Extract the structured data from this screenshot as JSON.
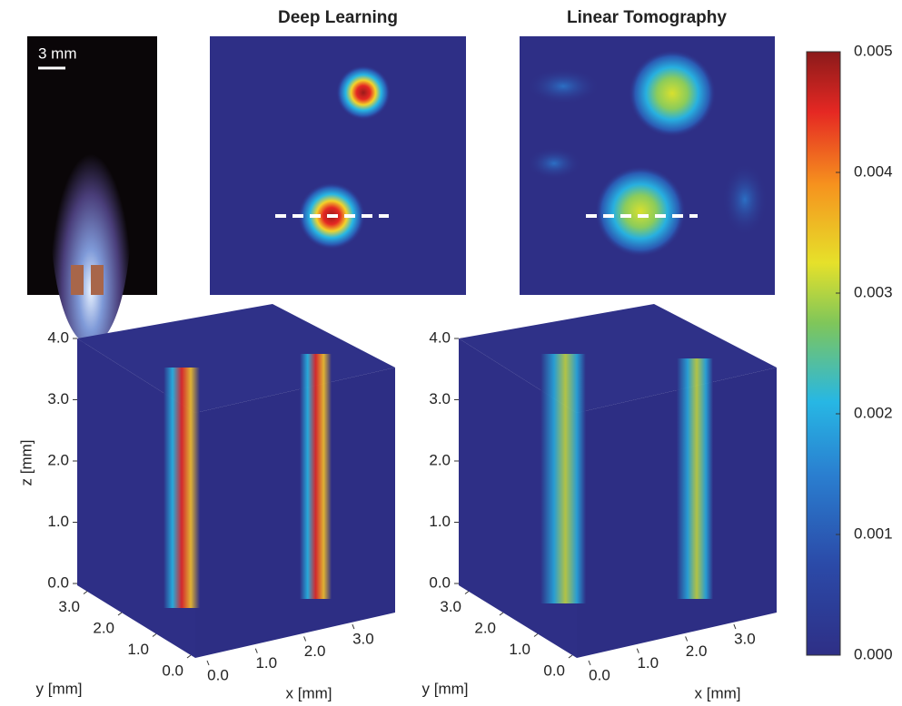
{
  "photo": {
    "scale_label": "3 mm"
  },
  "panels": [
    {
      "title": "Deep Learning"
    },
    {
      "title": "Linear Tomography"
    }
  ],
  "volumes": {
    "z_label": "z [mm]",
    "x_label": "x [mm]",
    "y_label": "y [mm]",
    "zlim": [
      0,
      4
    ],
    "zticks": [
      {
        "value": 0,
        "label": "0.0"
      },
      {
        "value": 1,
        "label": "1.0"
      },
      {
        "value": 2,
        "label": "2.0"
      },
      {
        "value": 3,
        "label": "3.0"
      },
      {
        "value": 4,
        "label": "4.0"
      }
    ],
    "xticks": [
      {
        "value": 0,
        "label": "0.0"
      },
      {
        "value": 1,
        "label": "1.0"
      },
      {
        "value": 2,
        "label": "2.0"
      },
      {
        "value": 3,
        "label": "3.0"
      }
    ],
    "yticks": [
      {
        "value": 0,
        "label": "0.0"
      },
      {
        "value": 1,
        "label": "1.0"
      },
      {
        "value": 2,
        "label": "2.0"
      },
      {
        "value": 3,
        "label": "3.0"
      }
    ]
  },
  "colorbar": {
    "lim": [
      0,
      0.005
    ],
    "ticks": [
      {
        "value": 0,
        "label": "0.000"
      },
      {
        "value": 0.001,
        "label": "0.001"
      },
      {
        "value": 0.002,
        "label": "0.002"
      },
      {
        "value": 0.003,
        "label": "0.003"
      },
      {
        "value": 0.004,
        "label": "0.004"
      },
      {
        "value": 0.005,
        "label": "0.005"
      }
    ]
  }
}
